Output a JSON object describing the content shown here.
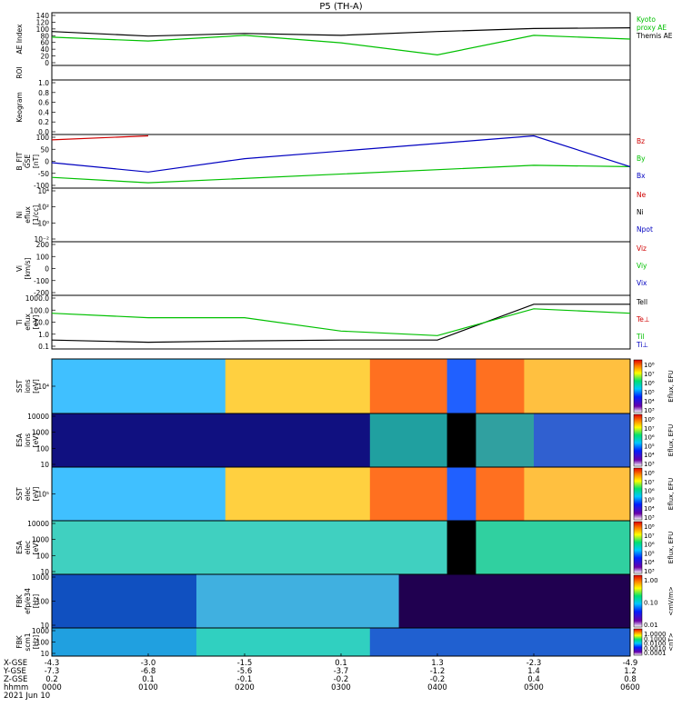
{
  "title": "P5 (TH-A)",
  "date": "2021 Jun 10",
  "ephem_labels": [
    "X-GSE",
    "Y-GSE",
    "Z-GSE",
    "hhmm"
  ],
  "ticks": [
    {
      "x": "-4.3",
      "y": "-7.3",
      "z": "0.2",
      "t": "0000"
    },
    {
      "x": "-3.0",
      "y": "-6.8",
      "z": "0.1",
      "t": "0100"
    },
    {
      "x": "-1.5",
      "y": "-5.6",
      "z": "-0.1",
      "t": "0200"
    },
    {
      "x": "0.1",
      "y": "-3.7",
      "z": "-0.2",
      "t": "0300"
    },
    {
      "x": "1.3",
      "y": "-1.2",
      "z": "-0.2",
      "t": "0400"
    },
    {
      "x": "-2.3",
      "y": "1.4",
      "z": "0.4",
      "t": "0500"
    },
    {
      "x": "-4.9",
      "y": "1.2",
      "z": "0.8",
      "t": "0600"
    }
  ],
  "panels": [
    {
      "id": "ae",
      "ylabel": [
        "AE Index"
      ],
      "yticks": [
        "140",
        "120",
        "100",
        "80",
        "60",
        "40",
        "20",
        "0"
      ],
      "legend": [
        {
          "text": "Kyoto",
          "color": "#00c000"
        },
        {
          "text": "proxy AE",
          "color": "#00c000"
        },
        {
          "text": "Themis AE",
          "color": "#000000"
        }
      ]
    },
    {
      "id": "roi",
      "ylabel": [
        "ROI"
      ],
      "yticks": [],
      "legend": []
    },
    {
      "id": "keogram",
      "ylabel": [
        "Keogram"
      ],
      "yticks": [
        "1.0",
        "0.8",
        "0.6",
        "0.4",
        "0.2",
        "0.0"
      ],
      "legend": []
    },
    {
      "id": "bfit",
      "ylabel": [
        "B_FIT",
        "GSE",
        "[nT]"
      ],
      "yticks": [
        "100",
        "50",
        "0",
        "-50",
        "-100"
      ],
      "legend": [
        {
          "text": "Bz",
          "color": "#d00000"
        },
        {
          "text": "By",
          "color": "#00c000"
        },
        {
          "text": "Bx",
          "color": "#0000c0"
        }
      ]
    },
    {
      "id": "ni",
      "ylabel": [
        "Ni",
        "eflux",
        "[1/cc]"
      ],
      "yticks": [
        "10⁴",
        "10²",
        "10⁰",
        "10⁻²"
      ],
      "legend": [
        {
          "text": "Ne",
          "color": "#d00000"
        },
        {
          "text": "Ni",
          "color": "#000000"
        },
        {
          "text": "Npot",
          "color": "#0000c0"
        }
      ]
    },
    {
      "id": "vi",
      "ylabel": [
        "Vi",
        "[km/s]"
      ],
      "yticks": [
        "200",
        "100",
        "0",
        "-100",
        "-200"
      ],
      "legend": [
        {
          "text": "Viz",
          "color": "#d00000"
        },
        {
          "text": "Viy",
          "color": "#00c000"
        },
        {
          "text": "Vix",
          "color": "#0000c0"
        }
      ]
    },
    {
      "id": "ti",
      "ylabel": [
        "Ti",
        "eflux",
        "[eV]"
      ],
      "yticks": [
        "1000.0",
        "100.0",
        "10.0",
        "1.0",
        "0.1"
      ],
      "legend": [
        {
          "text": "Tell",
          "color": "#000000"
        },
        {
          "text": "Te⊥",
          "color": "#d00000"
        },
        {
          "text": "Til",
          "color": "#00c000"
        },
        {
          "text": "Ti⊥",
          "color": "#0000c0"
        }
      ]
    },
    {
      "id": "sst_i",
      "ylabel": [
        "SST",
        "ions",
        "[eV]"
      ],
      "yticks": [
        "10⁴"
      ],
      "legend": [],
      "cbar": {
        "labels": [
          "10⁸",
          "10⁷",
          "10⁶",
          "10⁵",
          "10⁴",
          "10³"
        ],
        "title": "Eflux, EFU"
      }
    },
    {
      "id": "esa_i",
      "ylabel": [
        "ESA",
        "ions",
        "[eV]"
      ],
      "yticks": [
        "10000",
        "1000",
        "100",
        "10"
      ],
      "legend": [],
      "cbar": {
        "labels": [
          "10⁸",
          "10⁷",
          "10⁶",
          "10⁵",
          "10⁴",
          "10³"
        ],
        "title": "Eflux, EFU"
      }
    },
    {
      "id": "sst_e",
      "ylabel": [
        "SST",
        "elec",
        "[eV]"
      ],
      "yticks": [
        "10⁵"
      ],
      "legend": [],
      "cbar": {
        "labels": [
          "10⁸",
          "10⁷",
          "10⁶",
          "10⁵",
          "10⁴",
          "10³"
        ],
        "title": "Eflux, EFU"
      }
    },
    {
      "id": "esa_e",
      "ylabel": [
        "ESA",
        "elec",
        "[eV]"
      ],
      "yticks": [
        "10000",
        "1000",
        "100",
        "10"
      ],
      "legend": [],
      "cbar": {
        "labels": [
          "10⁸",
          "10⁷",
          "10⁶",
          "10⁵",
          "10⁴",
          "10³"
        ],
        "title": "Eflux, EFU"
      }
    },
    {
      "id": "fbk_e",
      "ylabel": [
        "FBK",
        "efp/e34",
        "[Hz]"
      ],
      "yticks": [
        "1000",
        "100",
        "10"
      ],
      "legend": [],
      "cbar": {
        "labels": [
          "1.00",
          "0.10",
          "0.01"
        ],
        "title": "<mV/m>"
      }
    },
    {
      "id": "fbk_b",
      "ylabel": [
        "FBK",
        "scm1",
        "[Hz]"
      ],
      "yticks": [
        "1000",
        "100",
        "10"
      ],
      "legend": [],
      "cbar": {
        "labels": [
          "1.0000",
          "0.1000",
          "0.0100",
          "0.0010",
          "0.0001"
        ],
        "title": "<nT>"
      }
    }
  ],
  "chart_data": {
    "type": "line",
    "title": "P5 (TH-A)",
    "x": [
      "0000",
      "0100",
      "0200",
      "0300",
      "0400",
      "0500",
      "0600"
    ],
    "series": [
      {
        "name": "Themis AE",
        "panel": "AE Index",
        "values": [
          90,
          78,
          85,
          80,
          90,
          98,
          100
        ]
      },
      {
        "name": "Kyoto proxy AE",
        "panel": "AE Index",
        "values": [
          75,
          65,
          80,
          60,
          28,
          80,
          70
        ]
      },
      {
        "name": "Bz",
        "panel": "B_FIT",
        "values": [
          80,
          95,
          null,
          null,
          null,
          null,
          null
        ]
      },
      {
        "name": "By",
        "panel": "B_FIT",
        "values": [
          -60,
          -80,
          null,
          null,
          null,
          -15,
          -20
        ]
      },
      {
        "name": "Bx",
        "panel": "B_FIT",
        "values": [
          -5,
          -40,
          10,
          null,
          null,
          95,
          -20
        ]
      },
      {
        "name": "Tell",
        "panel": "Ti",
        "values": [
          200,
          150,
          180,
          200,
          200,
          1000,
          1000
        ]
      },
      {
        "name": "Til",
        "panel": "Ti",
        "values": [
          800,
          700,
          700,
          400,
          300,
          900,
          800
        ]
      }
    ],
    "ylim": [
      0,
      140
    ]
  }
}
